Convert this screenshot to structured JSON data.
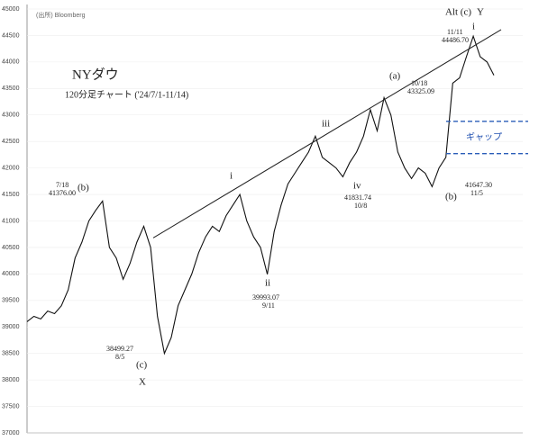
{
  "chart_data": {
    "type": "line",
    "title": "NYダウ",
    "subtitle": "120分足チャート ('24/7/1-11/14)",
    "source": "(出所) Bloomberg",
    "values": [
      39100,
      39200,
      39150,
      39300,
      39250,
      39400,
      39700,
      40300,
      40600,
      41000,
      41200,
      41376,
      40500,
      40300,
      39900,
      40200,
      40600,
      40900,
      40500,
      39200,
      38499,
      38800,
      39400,
      39700,
      40000,
      40400,
      40700,
      40900,
      40800,
      41100,
      41300,
      41500,
      41000,
      40700,
      40500,
      39993,
      40800,
      41300,
      41700,
      41900,
      42100,
      42300,
      42600,
      42200,
      42100,
      42000,
      41832,
      42100,
      42300,
      42600,
      43100,
      42700,
      43325,
      43000,
      42300,
      42000,
      41800,
      42000,
      41900,
      41647,
      42000,
      42200,
      43600,
      43700,
      44100,
      44487,
      44100,
      44000,
      43750
    ],
    "color": "#111111",
    "ylim": [
      37000,
      45000
    ],
    "yticks": [
      37000,
      37500,
      38000,
      38500,
      39000,
      39500,
      40000,
      40500,
      41000,
      41500,
      42000,
      42500,
      43000,
      43500,
      44000,
      44500,
      45000
    ],
    "grid": true,
    "trend_line": [
      40680,
      44610
    ],
    "gap_lines": [
      42880,
      42270
    ],
    "annotations": [
      "(b)",
      "7/18",
      "41376.00",
      "38499.27",
      "8/5",
      "(c)",
      "X",
      "i",
      "ii",
      "39993.07",
      "9/11",
      "iii",
      "iv",
      "41831.74",
      "10/8",
      "(a)",
      "10/18",
      "43325.09",
      "(b)",
      "41647.30",
      "11/5",
      "Alt (c)",
      "Y",
      "i",
      "11/11",
      "44486.70",
      "ギャップ"
    ]
  }
}
